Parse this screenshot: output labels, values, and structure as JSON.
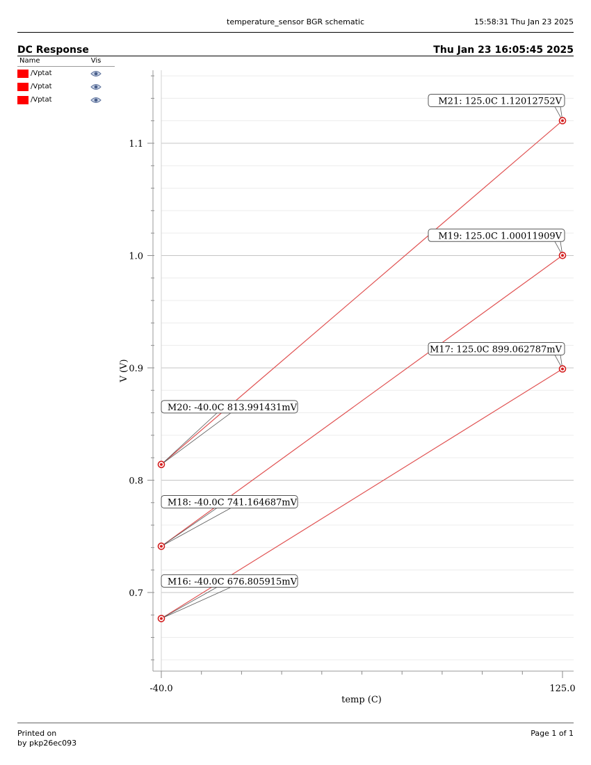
{
  "header": {
    "title": "temperature_sensor BGR schematic",
    "timestamp": "15:58:31  Thu Jan 23 2025"
  },
  "plot_header": {
    "title": "DC Response",
    "date": "Thu Jan 23 16:05:45 2025"
  },
  "legend": {
    "name_header": "Name",
    "vis_header": "Vis",
    "items": [
      {
        "label": "/Vptat",
        "color": "#ff0000",
        "icon": "eye-icon"
      },
      {
        "label": "/Vptat",
        "color": "#ff0000",
        "icon": "eye-icon"
      },
      {
        "label": "/Vptat",
        "color": "#ff0000",
        "icon": "eye-icon"
      }
    ]
  },
  "footer": {
    "printed_on": "Printed on",
    "printed_by": "by pkp26ec093",
    "page": "Page 1 of 1"
  },
  "chart_data": {
    "type": "line",
    "xlabel": "temp (C)",
    "ylabel": "V (V)",
    "xlim": [
      -40.0,
      125.0
    ],
    "ylim": [
      0.63,
      1.165
    ],
    "x_ticks": [
      -40.0,
      125.0
    ],
    "x_tick_labels": [
      "-40.0",
      "125.0"
    ],
    "y_ticks": [
      0.7,
      0.8,
      0.9,
      1.0,
      1.1
    ],
    "y_tick_labels": [
      "0.7",
      "0.8",
      "0.9",
      "1.0",
      "1.1"
    ],
    "grid": true,
    "line_color": "#e05050",
    "series": [
      {
        "name": "/Vptat",
        "x": [
          -40.0,
          125.0
        ],
        "y": [
          0.813991431,
          1.12012752
        ]
      },
      {
        "name": "/Vptat",
        "x": [
          -40.0,
          125.0
        ],
        "y": [
          0.741164687,
          1.00011909
        ]
      },
      {
        "name": "/Vptat",
        "x": [
          -40.0,
          125.0
        ],
        "y": [
          0.676805915,
          0.899062787
        ]
      }
    ],
    "markers": [
      {
        "label": "M21: 125.0C 1.12012752V",
        "x": 125.0,
        "y": 1.12012752,
        "side": "left"
      },
      {
        "label": "M19: 125.0C 1.00011909V",
        "x": 125.0,
        "y": 1.00011909,
        "side": "left"
      },
      {
        "label": "M17: 125.0C 899.062787mV",
        "x": 125.0,
        "y": 0.899062787,
        "side": "left"
      },
      {
        "label": "M20: -40.0C 813.991431mV",
        "x": -40.0,
        "y": 0.813991431,
        "side": "right"
      },
      {
        "label": "M18: -40.0C 741.164687mV",
        "x": -40.0,
        "y": 0.741164687,
        "side": "right"
      },
      {
        "label": "M16: -40.0C 676.805915mV",
        "x": -40.0,
        "y": 0.676805915,
        "side": "right"
      }
    ]
  }
}
